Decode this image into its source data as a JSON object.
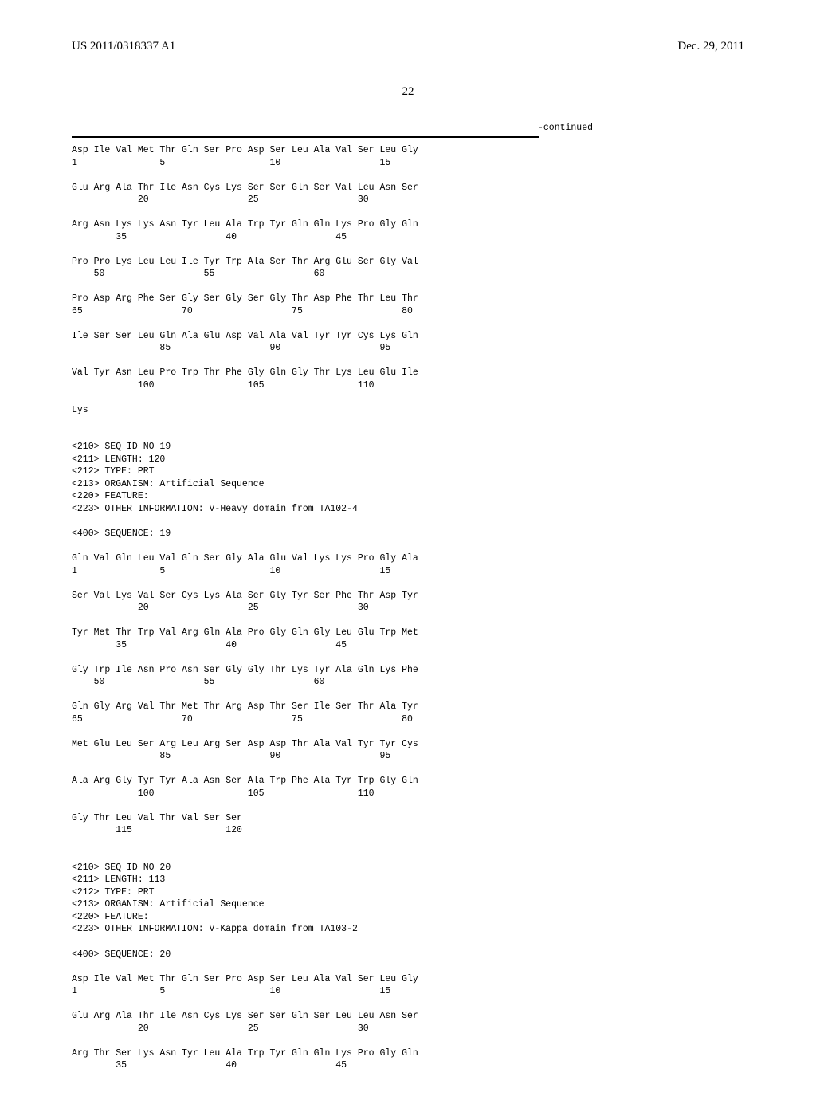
{
  "header": {
    "left": "US 2011/0318337 A1",
    "right": "Dec. 29, 2011"
  },
  "page_number": "22",
  "continued_label": "-continued",
  "sequence_lines": [
    "Asp Ile Val Met Thr Gln Ser Pro Asp Ser Leu Ala Val Ser Leu Gly",
    "1               5                   10                  15",
    "",
    "Glu Arg Ala Thr Ile Asn Cys Lys Ser Ser Gln Ser Val Leu Asn Ser",
    "            20                  25                  30",
    "",
    "Arg Asn Lys Lys Asn Tyr Leu Ala Trp Tyr Gln Gln Lys Pro Gly Gln",
    "        35                  40                  45",
    "",
    "Pro Pro Lys Leu Leu Ile Tyr Trp Ala Ser Thr Arg Glu Ser Gly Val",
    "    50                  55                  60",
    "",
    "Pro Asp Arg Phe Ser Gly Ser Gly Ser Gly Thr Asp Phe Thr Leu Thr",
    "65                  70                  75                  80",
    "",
    "Ile Ser Ser Leu Gln Ala Glu Asp Val Ala Val Tyr Tyr Cys Lys Gln",
    "                85                  90                  95",
    "",
    "Val Tyr Asn Leu Pro Trp Thr Phe Gly Gln Gly Thr Lys Leu Glu Ile",
    "            100                 105                 110",
    "",
    "Lys",
    "",
    "",
    "<210> SEQ ID NO 19",
    "<211> LENGTH: 120",
    "<212> TYPE: PRT",
    "<213> ORGANISM: Artificial Sequence",
    "<220> FEATURE:",
    "<223> OTHER INFORMATION: V-Heavy domain from TA102-4",
    "",
    "<400> SEQUENCE: 19",
    "",
    "Gln Val Gln Leu Val Gln Ser Gly Ala Glu Val Lys Lys Pro Gly Ala",
    "1               5                   10                  15",
    "",
    "Ser Val Lys Val Ser Cys Lys Ala Ser Gly Tyr Ser Phe Thr Asp Tyr",
    "            20                  25                  30",
    "",
    "Tyr Met Thr Trp Val Arg Gln Ala Pro Gly Gln Gly Leu Glu Trp Met",
    "        35                  40                  45",
    "",
    "Gly Trp Ile Asn Pro Asn Ser Gly Gly Thr Lys Tyr Ala Gln Lys Phe",
    "    50                  55                  60",
    "",
    "Gln Gly Arg Val Thr Met Thr Arg Asp Thr Ser Ile Ser Thr Ala Tyr",
    "65                  70                  75                  80",
    "",
    "Met Glu Leu Ser Arg Leu Arg Ser Asp Asp Thr Ala Val Tyr Tyr Cys",
    "                85                  90                  95",
    "",
    "Ala Arg Gly Tyr Tyr Ala Asn Ser Ala Trp Phe Ala Tyr Trp Gly Gln",
    "            100                 105                 110",
    "",
    "Gly Thr Leu Val Thr Val Ser Ser",
    "        115                 120",
    "",
    "",
    "<210> SEQ ID NO 20",
    "<211> LENGTH: 113",
    "<212> TYPE: PRT",
    "<213> ORGANISM: Artificial Sequence",
    "<220> FEATURE:",
    "<223> OTHER INFORMATION: V-Kappa domain from TA103-2",
    "",
    "<400> SEQUENCE: 20",
    "",
    "Asp Ile Val Met Thr Gln Ser Pro Asp Ser Leu Ala Val Ser Leu Gly",
    "1               5                   10                  15",
    "",
    "Glu Arg Ala Thr Ile Asn Cys Lys Ser Ser Gln Ser Leu Leu Asn Ser",
    "            20                  25                  30",
    "",
    "Arg Thr Ser Lys Asn Tyr Leu Ala Trp Tyr Gln Gln Lys Pro Gly Gln",
    "        35                  40                  45"
  ]
}
